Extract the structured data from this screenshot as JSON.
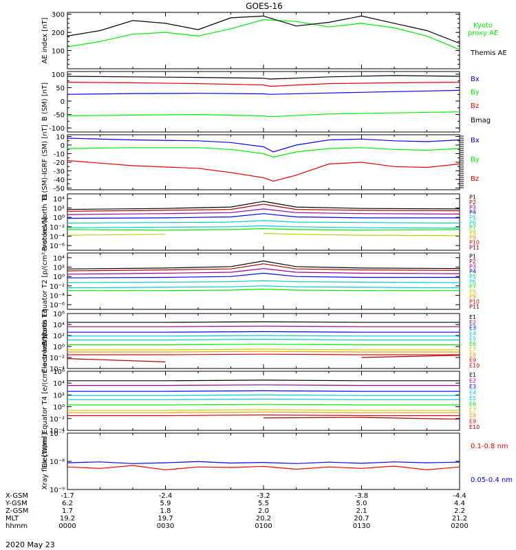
{
  "title": "GOES-16",
  "date_label": "2020 May 23",
  "colors": {
    "black": "#000000",
    "blue": "#0000ff",
    "green": "#00ee00",
    "red": "#ee0000",
    "darkred": "#aa0000",
    "yellow": "#cccc00",
    "orange": "#ee9900",
    "cyan": "#00cccc",
    "purple": "#990099"
  },
  "orbit_table": {
    "row_labels": [
      "X-GSM",
      "Y-GSM",
      "Z-GSM",
      "MLT",
      "hhmm"
    ],
    "columns": [
      {
        "values": [
          "-1.7",
          "6.2",
          "1.7",
          "19.2",
          "0000"
        ]
      },
      {
        "values": [
          "-2.4",
          "5.9",
          "1.8",
          "19.7",
          "0030"
        ]
      },
      {
        "values": [
          "-3.2",
          "5.5",
          "2.0",
          "20.2",
          "0100"
        ]
      },
      {
        "values": [
          "-3.8",
          "5.0",
          "2.1",
          "20.7",
          "0130"
        ]
      },
      {
        "values": [
          "-4.4",
          "4.4",
          "2.2",
          "21.2",
          "0200"
        ]
      }
    ]
  },
  "chart_data": [
    {
      "type": "line",
      "panel": "ae",
      "ylabel": "AE index [nT]",
      "ylim": [
        0,
        310
      ],
      "yticks": [
        "100",
        "200",
        "300"
      ],
      "ytick_values": [
        100,
        200,
        300
      ],
      "x": [
        0,
        10,
        20,
        30,
        40,
        50,
        60,
        70,
        80,
        90,
        100,
        110,
        120
      ],
      "series": [
        {
          "name": "Kyoto proxy AE",
          "color_key": "green",
          "label_lines": [
            "Kyoto",
            "proxy AE"
          ],
          "values": [
            120,
            150,
            190,
            200,
            180,
            220,
            270,
            260,
            230,
            250,
            225,
            180,
            105
          ]
        },
        {
          "name": "Themis AE",
          "color_key": "black",
          "label_lines": [
            "Themis AE"
          ],
          "values": [
            180,
            210,
            265,
            250,
            215,
            280,
            290,
            235,
            255,
            290,
            250,
            210,
            140
          ]
        }
      ]
    },
    {
      "type": "line",
      "panel": "bsm",
      "ylabel": "B (SM) [nT]",
      "ylim": [
        -115,
        110
      ],
      "yticks": [
        "100",
        "50",
        "0",
        "-50",
        "-100"
      ],
      "ytick_values": [
        100,
        50,
        0,
        -50,
        -100
      ],
      "x": [
        0,
        20,
        40,
        60,
        62,
        80,
        100,
        120
      ],
      "series": [
        {
          "name": "Bx",
          "color_key": "blue",
          "values": [
            25,
            28,
            29,
            27,
            25,
            30,
            35,
            40
          ]
        },
        {
          "name": "By",
          "color_key": "green",
          "values": [
            -55,
            -52,
            -50,
            -55,
            -58,
            -48,
            -44,
            -40
          ]
        },
        {
          "name": "Bz",
          "color_key": "red",
          "values": [
            70,
            68,
            65,
            60,
            55,
            65,
            68,
            70
          ]
        },
        {
          "name": "Bmag",
          "color_key": "black",
          "values": [
            92,
            90,
            88,
            85,
            82,
            90,
            95,
            92
          ]
        }
      ]
    },
    {
      "type": "line",
      "panel": "bigrf",
      "ylabel": "B (SM)-IGRF (SM) [nT]",
      "ylim": [
        -52,
        12
      ],
      "yticks": [
        "10",
        "0",
        "-10",
        "-20",
        "-30",
        "-40",
        "-50"
      ],
      "ytick_values": [
        10,
        0,
        -10,
        -20,
        -30,
        -40,
        -50
      ],
      "x": [
        0,
        20,
        40,
        50,
        60,
        63,
        70,
        80,
        90,
        100,
        110,
        120
      ],
      "series": [
        {
          "name": "Bx",
          "color_key": "blue",
          "values": [
            8,
            6,
            5,
            3,
            -2,
            -8,
            0,
            6,
            7,
            5,
            4,
            6
          ]
        },
        {
          "name": "By",
          "color_key": "green",
          "values": [
            -4,
            -3,
            -3,
            -5,
            -10,
            -14,
            -8,
            -4,
            -3,
            -5,
            -6,
            -4
          ]
        },
        {
          "name": "Bz",
          "color_key": "red",
          "values": [
            -18,
            -24,
            -27,
            -32,
            -38,
            -42,
            -35,
            -22,
            -20,
            -25,
            -26,
            -22
          ]
        }
      ]
    },
    {
      "type": "line",
      "panel": "p_north",
      "ylabel": "Protons North T1",
      "log_scale": true,
      "ylim_exp": [
        -7,
        5
      ],
      "yticks": [
        "10⁴",
        "10²",
        "10⁰",
        "10⁻²",
        "10⁻⁴",
        "10⁻⁶"
      ],
      "ytick_exponents": [
        4,
        2,
        0,
        -2,
        -4,
        -6
      ],
      "x": [
        0,
        30,
        50,
        60,
        70,
        90,
        120
      ],
      "channels": [
        {
          "name": "P1",
          "color_key": "black",
          "log10": [
            1.7,
            1.9,
            2.2,
            3.4,
            2.2,
            1.9,
            1.8
          ]
        },
        {
          "name": "P2",
          "color_key": "darkred",
          "log10": [
            1.3,
            1.5,
            1.7,
            2.8,
            1.7,
            1.5,
            1.4
          ]
        },
        {
          "name": "P3",
          "color_key": "purple",
          "log10": [
            0.6,
            0.8,
            1.0,
            1.8,
            1.0,
            0.8,
            0.7
          ]
        },
        {
          "name": "P4",
          "color_key": "blue",
          "log10": [
            -0.2,
            -0.1,
            0.1,
            0.8,
            0.1,
            -0.1,
            -0.1
          ]
        },
        {
          "name": "P5",
          "color_key": "cyan",
          "log10": [
            -1.2,
            -1.1,
            -1.0,
            -0.7,
            -1.0,
            -1.1,
            -1.2
          ]
        },
        {
          "name": "P6",
          "color_key": "cyan",
          "log10": [
            -2.2,
            -2.1,
            -2.0,
            -1.8,
            -2.0,
            -2.2,
            -2.3
          ]
        },
        {
          "name": "P7",
          "color_key": "green",
          "log10": [
            -2.6,
            -2.7,
            -2.6,
            -2.4,
            -2.6,
            -2.7,
            -2.6
          ]
        },
        {
          "name": "P8",
          "color_key": "yellow",
          "log10": [
            -3.8,
            -3.6,
            null,
            -3.4,
            -3.6,
            -3.8,
            -3.9
          ]
        },
        {
          "name": "P9",
          "color_key": "orange",
          "log10": []
        },
        {
          "name": "P10",
          "color_key": "red",
          "log10": []
        },
        {
          "name": "P11",
          "color_key": "darkred",
          "log10": []
        }
      ]
    },
    {
      "type": "line",
      "panel": "p_equator",
      "ylabel": "Protons Equator T2 [p/(cm²-s-sr-keV)]",
      "log_scale": true,
      "ylim_exp": [
        -7,
        5
      ],
      "yticks": [
        "10⁴",
        "10²",
        "10⁰",
        "10⁻²",
        "10⁻⁴",
        "10⁻⁶"
      ],
      "ytick_exponents": [
        4,
        2,
        0,
        -2,
        -4,
        -6
      ],
      "x": [
        0,
        30,
        50,
        60,
        70,
        90,
        120
      ],
      "channels": [
        {
          "name": "P1",
          "color_key": "black",
          "log10": [
            1.6,
            1.8,
            2.1,
            3.3,
            2.1,
            1.8,
            1.7
          ]
        },
        {
          "name": "P2",
          "color_key": "darkred",
          "log10": [
            1.2,
            1.4,
            1.6,
            2.7,
            1.6,
            1.4,
            1.3
          ]
        },
        {
          "name": "P3",
          "color_key": "purple",
          "log10": [
            0.5,
            0.7,
            0.9,
            1.7,
            0.9,
            0.7,
            0.6
          ]
        },
        {
          "name": "P4",
          "color_key": "blue",
          "log10": [
            -0.3,
            -0.2,
            0.0,
            0.7,
            0.0,
            -0.2,
            -0.2
          ]
        },
        {
          "name": "P5",
          "color_key": "cyan",
          "log10": [
            -1.3,
            -1.2,
            -1.1,
            -0.9,
            -1.1,
            -1.2,
            -1.3
          ]
        },
        {
          "name": "P6",
          "color_key": "cyan",
          "log10": [
            -2.4,
            -2.3,
            -2.2,
            -2.0,
            -2.2,
            -2.3,
            -2.4
          ]
        },
        {
          "name": "P7",
          "color_key": "green",
          "log10": [
            -3.0,
            -3.0,
            -2.9,
            -2.7,
            -2.9,
            -3.0,
            -3.0
          ]
        },
        {
          "name": "P8",
          "color_key": "yellow",
          "log10": [
            -4.0,
            null,
            -3.9,
            null,
            -4.1,
            null,
            -4.0
          ]
        },
        {
          "name": "P9",
          "color_key": "orange",
          "log10": []
        },
        {
          "name": "P10",
          "color_key": "red",
          "log10": []
        },
        {
          "name": "P11",
          "color_key": "darkred",
          "log10": []
        }
      ]
    },
    {
      "type": "line",
      "panel": "e_north",
      "ylabel": "Electrons North T3",
      "log_scale": true,
      "ylim_exp": [
        -4,
        6
      ],
      "yticks": [
        "10⁶",
        "10⁴",
        "10²",
        "10⁰",
        "10⁻²",
        "10⁻⁴"
      ],
      "ytick_exponents": [
        6,
        4,
        2,
        0,
        -2,
        -4
      ],
      "x": [
        0,
        30,
        60,
        90,
        120
      ],
      "channels": [
        {
          "name": "E1",
          "color_key": "black",
          "log10": [
            4.4,
            4.4,
            4.5,
            4.4,
            4.4
          ]
        },
        {
          "name": "E2",
          "color_key": "purple",
          "log10": [
            3.6,
            3.6,
            3.7,
            3.6,
            3.6
          ]
        },
        {
          "name": "E3",
          "color_key": "blue",
          "log10": [
            2.6,
            2.6,
            2.7,
            2.6,
            2.6
          ]
        },
        {
          "name": "E4",
          "color_key": "cyan",
          "log10": [
            1.9,
            1.9,
            2.0,
            1.9,
            1.9
          ]
        },
        {
          "name": "E5",
          "color_key": "cyan",
          "log10": [
            1.2,
            1.2,
            1.3,
            1.2,
            1.2
          ]
        },
        {
          "name": "E6",
          "color_key": "green",
          "log10": [
            0.3,
            0.3,
            0.4,
            0.3,
            0.3
          ]
        },
        {
          "name": "E7",
          "color_key": "yellow",
          "log10": [
            -0.6,
            -0.6,
            -0.5,
            -0.6,
            -0.6
          ]
        },
        {
          "name": "E8",
          "color_key": "orange",
          "log10": [
            -1.0,
            -1.0,
            -0.9,
            -1.0,
            -1.0
          ]
        },
        {
          "name": "E9",
          "color_key": "red",
          "log10": [
            -1.5,
            -1.5,
            -1.4,
            -1.5,
            -1.5
          ]
        },
        {
          "name": "E10",
          "color_key": "darkred",
          "log10": [
            -2.2,
            -2.8,
            null,
            -2.0,
            -1.6
          ]
        }
      ]
    },
    {
      "type": "line",
      "panel": "e_equator",
      "ylabel": "Electrons Equator T4 [e/(cm²-s-sr-keV)]",
      "log_scale": true,
      "ylim_exp": [
        -4,
        6
      ],
      "yticks": [
        "10⁶",
        "10⁴",
        "10²",
        "10⁰",
        "10⁻²",
        "10⁻⁴"
      ],
      "ytick_exponents": [
        6,
        4,
        2,
        0,
        -2,
        -4
      ],
      "x": [
        0,
        30,
        60,
        90,
        120
      ],
      "channels": [
        {
          "name": "E1",
          "color_key": "black",
          "log10": [
            4.4,
            4.4,
            4.5,
            4.4,
            4.4
          ]
        },
        {
          "name": "E2",
          "color_key": "purple",
          "log10": [
            3.6,
            3.6,
            3.7,
            3.6,
            3.6
          ]
        },
        {
          "name": "E3",
          "color_key": "blue",
          "log10": [
            2.6,
            2.6,
            2.7,
            2.6,
            2.6
          ]
        },
        {
          "name": "E4",
          "color_key": "cyan",
          "log10": [
            1.9,
            1.9,
            2.0,
            1.9,
            1.9
          ]
        },
        {
          "name": "E5",
          "color_key": "cyan",
          "log10": [
            1.2,
            1.2,
            1.3,
            1.2,
            1.2
          ]
        },
        {
          "name": "E6",
          "color_key": "green",
          "log10": [
            0.3,
            0.3,
            0.4,
            0.3,
            0.3
          ]
        },
        {
          "name": "E7",
          "color_key": "yellow",
          "log10": [
            -0.6,
            -0.6,
            -0.5,
            -0.6,
            -0.6
          ]
        },
        {
          "name": "E8",
          "color_key": "orange",
          "log10": [
            -1.0,
            -1.0,
            -0.9,
            -1.0,
            -1.0
          ]
        },
        {
          "name": "E9",
          "color_key": "red",
          "log10": [
            -1.5,
            -1.5,
            -1.4,
            -1.5,
            -1.5
          ]
        },
        {
          "name": "E10",
          "color_key": "darkred",
          "log10": [
            -2.0,
            null,
            -1.9,
            -1.8,
            -2.1
          ]
        }
      ]
    },
    {
      "type": "line",
      "panel": "xray",
      "ylabel": "Xray flux [W/m²]",
      "log_scale": true,
      "ylim_exp": [
        -9,
        -7
      ],
      "yticks": [
        "10⁻⁷",
        "10⁻⁸",
        "10⁻⁹"
      ],
      "ytick_exponents": [
        -7,
        -8,
        -9
      ],
      "x": [
        0,
        10,
        20,
        30,
        40,
        50,
        60,
        70,
        80,
        90,
        100,
        110,
        120
      ],
      "series": [
        {
          "name": "0.1-0.8 nm",
          "color_key": "red",
          "log10": [
            -8.2,
            -8.25,
            -8.15,
            -8.3,
            -8.2,
            -8.22,
            -8.18,
            -8.28,
            -8.2,
            -8.25,
            -8.17,
            -8.3,
            -8.2
          ]
        },
        {
          "name": "0.05-0.4 nm",
          "color_key": "blue",
          "log10": [
            -8.05,
            -8.02,
            -8.08,
            -8.05,
            -8.01,
            -8.06,
            -8.04,
            -8.08,
            -8.03,
            -8.07,
            -8.02,
            -8.05,
            -8.03
          ]
        }
      ]
    }
  ]
}
